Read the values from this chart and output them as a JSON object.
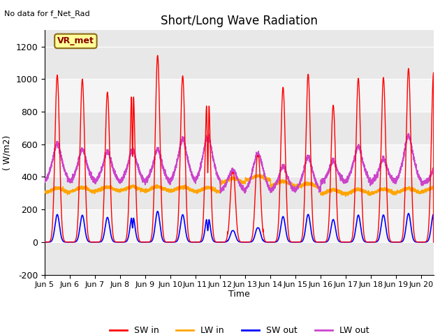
{
  "title": "Short/Long Wave Radiation",
  "ylabel": "( W/m2)",
  "xlabel": "Time",
  "annotation": "No data for f_Net_Rad",
  "station_label": "VR_met",
  "ylim": [
    -200,
    1300
  ],
  "yticks": [
    -200,
    0,
    200,
    400,
    600,
    800,
    1000,
    1200
  ],
  "xtick_labels": [
    "Jun 5",
    "Jun 6",
    "Jun 7",
    "Jun 8",
    "Jun 9",
    "Jun 10",
    "Jun 11",
    "Jun 12",
    "Jun 13",
    "Jun 14",
    "Jun 15",
    "Jun 16",
    "Jun 17",
    "Jun 18",
    "Jun 19",
    "Jun 20"
  ],
  "colors": {
    "SW_in": "#ff0000",
    "LW_in": "#ffa500",
    "SW_out": "#0000ff",
    "LW_out": "#cc44cc"
  },
  "background_color": "#ffffff",
  "plot_bg_color": "#e8e8e8",
  "grid_color": "#ffffff",
  "legend_labels": [
    "SW in",
    "LW in",
    "SW out",
    "LW out"
  ],
  "figsize": [
    6.4,
    4.8
  ],
  "dpi": 100,
  "band_colors": [
    "#e8e8e8",
    "#f5f5f5"
  ]
}
